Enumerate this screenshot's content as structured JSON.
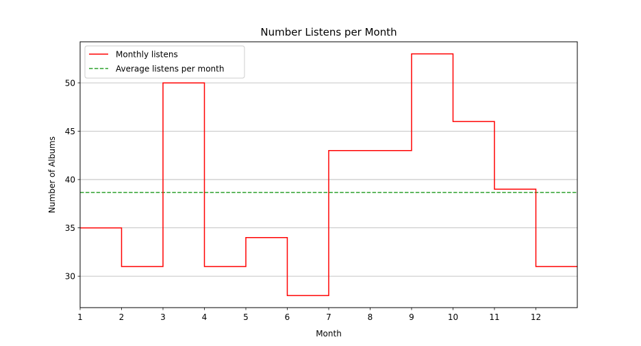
{
  "chart_data": {
    "type": "line",
    "title": "Number Listens per Month",
    "xlabel": "Month",
    "ylabel": "Number of Albums",
    "xlim": [
      1,
      13
    ],
    "ylim": [
      26.75,
      54.25
    ],
    "x_ticks": [
      "1",
      "2",
      "3",
      "4",
      "5",
      "6",
      "7",
      "8",
      "9",
      "10",
      "11",
      "12"
    ],
    "y_ticks": [
      "30",
      "35",
      "40",
      "45",
      "50"
    ],
    "grid": "y",
    "legend_position": "top-left",
    "series": [
      {
        "name": "Monthly listens",
        "style": "step-post",
        "color": "#ff0000",
        "x": [
          1,
          2,
          3,
          4,
          5,
          6,
          7,
          8,
          9,
          10,
          11,
          12
        ],
        "values": [
          35,
          31,
          50,
          31,
          34,
          28,
          43,
          43,
          53,
          46,
          39,
          31
        ]
      },
      {
        "name": "Average listens per month",
        "style": "dashed",
        "color": "#2ca02c",
        "value": 38.67
      }
    ]
  }
}
